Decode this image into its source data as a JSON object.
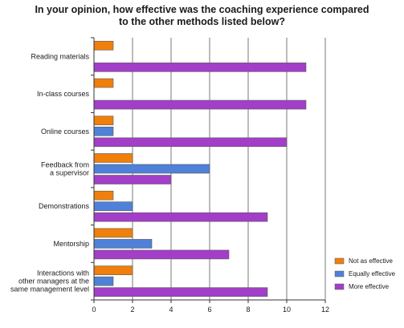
{
  "chart_data": {
    "type": "bar",
    "orientation": "horizontal",
    "title_lines": [
      "In your opinion, how effective was the coaching experience compared",
      "to the other methods listed below?"
    ],
    "categories": [
      [
        "Reading materials"
      ],
      [
        "In-class courses"
      ],
      [
        "Online courses"
      ],
      [
        "Feedback from",
        "a supervisor"
      ],
      [
        "Demonstrations"
      ],
      [
        "Mentorship"
      ],
      [
        "Interactions with",
        "other managers at the",
        "same management level"
      ]
    ],
    "series": [
      {
        "name": "Not as effective",
        "color": "#f07f0b",
        "values": [
          1,
          1,
          1,
          2,
          1,
          2,
          2
        ]
      },
      {
        "name": "Equally effective",
        "color": "#4f81d8",
        "values": [
          0,
          0,
          1,
          6,
          2,
          3,
          1
        ]
      },
      {
        "name": "More effective",
        "color": "#a23ec8",
        "values": [
          11,
          11,
          10,
          4,
          9,
          7,
          9
        ]
      }
    ],
    "xlim": [
      0,
      12
    ],
    "xticks": [
      "0",
      "2",
      "4",
      "6",
      "8",
      "10",
      "12"
    ],
    "grid": "vertical",
    "legend_position": "bottom-right"
  }
}
